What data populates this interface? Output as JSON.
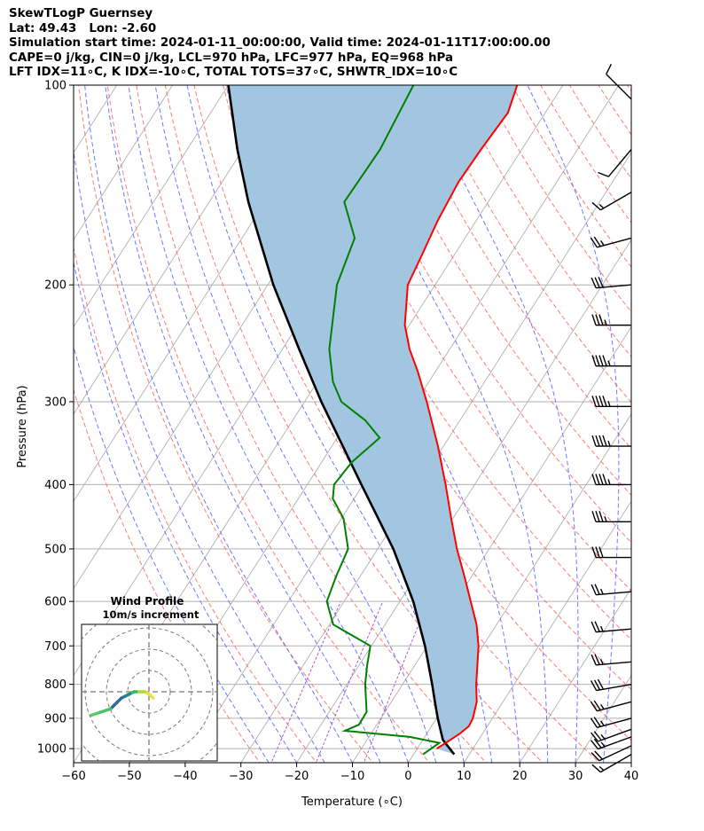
{
  "header": {
    "title_lines": [
      "SkewTLogP Guernsey",
      "Lat: 49.43   Lon: -2.60",
      "Simulation start time: 2024-01-11_00:00:00, Valid time: 2024-01-11T17:00:00.00",
      "CAPE=0 j/kg, CIN=0 j/kg, LCL=970 hPa, LFC=977 hPa, EQ=968 hPa",
      "LFT IDX=11∘C, K IDX=-10∘C, TOTAL TOTS=37∘C, SHWTR_IDX=10∘C"
    ]
  },
  "chart_data": [
    {
      "type": "line",
      "kind": "skew-t log-p",
      "xlabel": "Temperature (∘C)",
      "ylabel": "Pressure (hPa)",
      "xlim": [
        -60,
        40
      ],
      "ylim": [
        1050,
        100
      ],
      "y_scale": "log",
      "x_ticks": [
        -60,
        -50,
        -40,
        -30,
        -20,
        -10,
        0,
        10,
        20,
        30,
        40
      ],
      "x_tick_labels": [
        "−60",
        "−50",
        "−40",
        "−30",
        "−20",
        "−10",
        "0",
        "10",
        "20",
        "30",
        "40"
      ],
      "y_ticks": [
        1000,
        900,
        800,
        700,
        600,
        500,
        400,
        300,
        200,
        100
      ],
      "y_tick_labels": [
        "1000",
        "900",
        "800",
        "700",
        "600",
        "500",
        "400",
        "300",
        "200",
        "100"
      ],
      "grid": true,
      "colors": {
        "temperature": "#ff0000",
        "dewpoint": "#008000",
        "parcel": "#000000",
        "cape_fill": "#a3c6e0",
        "dry_adiabats": "#ff6b6b",
        "moist_adiabats": "#5a6cff",
        "mixing_ratio": "#b05ac8",
        "isotherms": "#b0b0b0"
      },
      "series": [
        {
          "id": "temperature",
          "points": [
            {
              "p": 1000,
              "t": 3.5
            },
            {
              "p": 950,
              "t": 5.9
            },
            {
              "p": 925,
              "t": 6.7
            },
            {
              "p": 900,
              "t": 6.5
            },
            {
              "p": 850,
              "t": 5.3
            },
            {
              "p": 800,
              "t": 3.2
            },
            {
              "p": 700,
              "t": -0.8
            },
            {
              "p": 650,
              "t": -3.6
            },
            {
              "p": 600,
              "t": -7.3
            },
            {
              "p": 550,
              "t": -11.3
            },
            {
              "p": 500,
              "t": -15.8
            },
            {
              "p": 450,
              "t": -20.3
            },
            {
              "p": 400,
              "t": -25.2
            },
            {
              "p": 350,
              "t": -31.0
            },
            {
              "p": 300,
              "t": -38.1
            },
            {
              "p": 270,
              "t": -43.2
            },
            {
              "p": 250,
              "t": -47.2
            },
            {
              "p": 230,
              "t": -50.8
            },
            {
              "p": 200,
              "t": -54.9
            },
            {
              "p": 180,
              "t": -55.8
            },
            {
              "p": 160,
              "t": -56.9
            },
            {
              "p": 140,
              "t": -57.6
            },
            {
              "p": 125,
              "t": -57.3
            },
            {
              "p": 110,
              "t": -56.7
            },
            {
              "p": 100,
              "t": -58.2
            }
          ]
        },
        {
          "id": "dewpoint",
          "points": [
            {
              "p": 1020,
              "t": 1.7
            },
            {
              "p": 980,
              "t": 3.3
            },
            {
              "p": 960,
              "t": -2.7
            },
            {
              "p": 940,
              "t": -15.0
            },
            {
              "p": 920,
              "t": -13.2
            },
            {
              "p": 880,
              "t": -13.3
            },
            {
              "p": 800,
              "t": -16.7
            },
            {
              "p": 750,
              "t": -18.5
            },
            {
              "p": 700,
              "t": -20.2
            },
            {
              "p": 650,
              "t": -29.3
            },
            {
              "p": 600,
              "t": -33.1
            },
            {
              "p": 550,
              "t": -34.3
            },
            {
              "p": 500,
              "t": -35.3
            },
            {
              "p": 450,
              "t": -39.6
            },
            {
              "p": 420,
              "t": -43.8
            },
            {
              "p": 400,
              "t": -45.2
            },
            {
              "p": 370,
              "t": -44.6
            },
            {
              "p": 340,
              "t": -42.4
            },
            {
              "p": 320,
              "t": -47.0
            },
            {
              "p": 300,
              "t": -53.4
            },
            {
              "p": 280,
              "t": -57.2
            },
            {
              "p": 250,
              "t": -61.6
            },
            {
              "p": 200,
              "t": -67.6
            },
            {
              "p": 170,
              "t": -69.8
            },
            {
              "p": 150,
              "t": -75.8
            },
            {
              "p": 125,
              "t": -75.4
            },
            {
              "p": 100,
              "t": -76.8
            }
          ]
        },
        {
          "id": "parcel",
          "points": [
            {
              "p": 1020,
              "t": 7.3
            },
            {
              "p": 970,
              "t": 3.6
            },
            {
              "p": 900,
              "t": 0.2
            },
            {
              "p": 850,
              "t": -2.2
            },
            {
              "p": 800,
              "t": -4.7
            },
            {
              "p": 700,
              "t": -10.4
            },
            {
              "p": 600,
              "t": -17.6
            },
            {
              "p": 500,
              "t": -27.2
            },
            {
              "p": 400,
              "t": -40.3
            },
            {
              "p": 300,
              "t": -57.0
            },
            {
              "p": 250,
              "t": -67.0
            },
            {
              "p": 200,
              "t": -79.0
            },
            {
              "p": 150,
              "t": -93.0
            },
            {
              "p": 125,
              "t": -101.0
            },
            {
              "p": 100,
              "t": -110.0
            }
          ]
        }
      ],
      "wind_barbs": [
        {
          "p": 1020,
          "dir": 240,
          "kt": 15
        },
        {
          "p": 990,
          "dir": 245,
          "kt": 20
        },
        {
          "p": 960,
          "dir": 250,
          "kt": 25
        },
        {
          "p": 935,
          "dir": 250,
          "kt": 25
        },
        {
          "p": 900,
          "dir": 255,
          "kt": 25
        },
        {
          "p": 850,
          "dir": 255,
          "kt": 25
        },
        {
          "p": 800,
          "dir": 260,
          "kt": 30
        },
        {
          "p": 740,
          "dir": 265,
          "kt": 25
        },
        {
          "p": 660,
          "dir": 265,
          "kt": 25
        },
        {
          "p": 580,
          "dir": 265,
          "kt": 25
        },
        {
          "p": 515,
          "dir": 270,
          "kt": 30
        },
        {
          "p": 455,
          "dir": 270,
          "kt": 35
        },
        {
          "p": 400,
          "dir": 270,
          "kt": 45
        },
        {
          "p": 350,
          "dir": 270,
          "kt": 45
        },
        {
          "p": 305,
          "dir": 270,
          "kt": 45
        },
        {
          "p": 265,
          "dir": 270,
          "kt": 45
        },
        {
          "p": 230,
          "dir": 270,
          "kt": 35
        },
        {
          "p": 200,
          "dir": 265,
          "kt": 30
        },
        {
          "p": 170,
          "dir": 255,
          "kt": 25
        },
        {
          "p": 145,
          "dir": 240,
          "kt": 15
        },
        {
          "p": 125,
          "dir": 220,
          "kt": 10
        },
        {
          "p": 105,
          "dir": 315,
          "kt": 10
        }
      ]
    },
    {
      "type": "line",
      "kind": "hodograph",
      "title": "Wind Profile",
      "subtitle": "10m/s increment",
      "ring_increment": 10,
      "u": [
        2,
        0,
        -2,
        -4,
        -6,
        -7,
        -9,
        -11,
        -13,
        -15,
        -18,
        -21,
        -24,
        -27
      ],
      "v": [
        3,
        1,
        0,
        0,
        0,
        0,
        1,
        2,
        3,
        5,
        8,
        9,
        10,
        11
      ],
      "colors_low_to_high": [
        "#e8e33a",
        "#a8db34",
        "#35b779",
        "#26828e",
        "#31688e",
        "#4cc26c",
        "#5ec962"
      ]
    }
  ]
}
